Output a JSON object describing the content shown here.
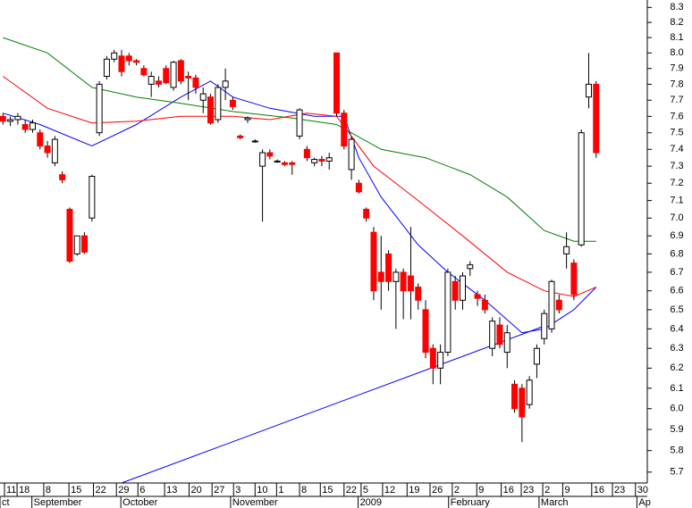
{
  "chart_data": {
    "type": "candlestick",
    "log_scale": true,
    "up_color": "#ffffff",
    "down_color": "#ff0000",
    "wick_color": "#000000",
    "xlim": [
      -0.4,
      86.9
    ],
    "ylim": [
      5.65,
      8.35
    ],
    "yticks": [
      8.3,
      8.2,
      8.1,
      {
        "value": 8,
        "label": "8.0"
      },
      7.9,
      7.8,
      7.7,
      7.6,
      7.5,
      7.4,
      7.3,
      7.2,
      7.1,
      {
        "value": 7,
        "label": "7.0"
      },
      6.9,
      6.8,
      6.7,
      6.6,
      6.5,
      6.4,
      6.3,
      6.2,
      6.1,
      {
        "value": 6,
        "label": "6.0"
      },
      5.9,
      5.8,
      5.7
    ],
    "xticks": [
      {
        "value": 0.2,
        "label": "11"
      },
      {
        "value": 1.9,
        "label": "18"
      },
      {
        "value": 5.5,
        "label": "8"
      },
      {
        "value": 8.9,
        "label": "15"
      },
      {
        "value": 12.2,
        "label": "22"
      },
      {
        "value": 15.3,
        "label": "29"
      },
      {
        "value": 18.2,
        "label": "6"
      },
      {
        "value": 21.8,
        "label": "13"
      },
      {
        "value": 25.1,
        "label": "20"
      },
      {
        "value": 28.2,
        "label": "27"
      },
      {
        "value": 31.1,
        "label": "3"
      },
      {
        "value": 34.0,
        "label": "10"
      },
      {
        "value": 36.9,
        "label": "1"
      },
      {
        "value": 40.0,
        "label": "8"
      },
      {
        "value": 42.8,
        "label": "15"
      },
      {
        "value": 46.0,
        "label": "22"
      },
      {
        "value": 48.3,
        "label": "5"
      },
      {
        "value": 51.2,
        "label": "12"
      },
      {
        "value": 54.5,
        "label": "19"
      },
      {
        "value": 57.6,
        "label": "26"
      },
      {
        "value": 60.6,
        "label": "2"
      },
      {
        "value": 63.9,
        "label": "9"
      },
      {
        "value": 67.2,
        "label": "16"
      },
      {
        "value": 69.9,
        "label": "23"
      },
      {
        "value": 72.8,
        "label": "2"
      },
      {
        "value": 75.5,
        "label": "9"
      },
      {
        "value": 79.4,
        "label": "16"
      },
      {
        "value": 82.2,
        "label": "23"
      },
      {
        "value": 85.3,
        "label": "30"
      }
    ],
    "month_labels": [
      {
        "value": -0.4,
        "label": "ct"
      },
      {
        "value": 3.9,
        "label": "September"
      },
      {
        "value": 15.9,
        "label": "October"
      },
      {
        "value": 30.7,
        "label": "November"
      },
      {
        "value": 47.9,
        "label": "2009"
      },
      {
        "value": 60.1,
        "label": "February"
      },
      {
        "value": 72.3,
        "label": "March"
      },
      {
        "value": 85.5,
        "label": "Ap"
      }
    ],
    "candles": [
      [
        7.6,
        7.62,
        7.55,
        7.57
      ],
      [
        7.57,
        7.6,
        7.54,
        7.58
      ],
      [
        7.58,
        7.62,
        7.55,
        7.6
      ],
      [
        7.55,
        7.58,
        7.5,
        7.52
      ],
      [
        7.52,
        7.58,
        7.5,
        7.56
      ],
      [
        7.5,
        7.52,
        7.4,
        7.42
      ],
      [
        7.42,
        7.45,
        7.35,
        7.38
      ],
      [
        7.32,
        7.48,
        7.3,
        7.46
      ],
      [
        7.25,
        7.27,
        7.2,
        7.22
      ],
      [
        7.05,
        7.06,
        6.75,
        6.76
      ],
      [
        6.8,
        6.9,
        6.79,
        6.9
      ],
      [
        6.9,
        6.92,
        6.8,
        6.81
      ],
      [
        7.0,
        7.25,
        6.98,
        7.24
      ],
      [
        7.5,
        7.82,
        7.48,
        7.8
      ],
      [
        7.85,
        7.98,
        7.83,
        7.96
      ],
      [
        7.96,
        8.02,
        7.94,
        8.0
      ],
      [
        7.98,
        8.02,
        7.85,
        7.88
      ],
      [
        7.98,
        8.0,
        7.92,
        7.95
      ],
      [
        7.95,
        7.96,
        7.92,
        7.94
      ],
      [
        7.9,
        7.92,
        7.85,
        7.86
      ],
      [
        7.8,
        7.88,
        7.72,
        7.85
      ],
      [
        7.82,
        7.85,
        7.78,
        7.8
      ],
      [
        7.9,
        7.92,
        7.8,
        7.81
      ],
      [
        7.78,
        7.95,
        7.76,
        7.94
      ],
      [
        7.95,
        7.96,
        7.8,
        7.82
      ],
      [
        7.85,
        7.88,
        7.7,
        7.84
      ],
      [
        7.84,
        7.86,
        7.74,
        7.78
      ],
      [
        7.7,
        7.78,
        7.62,
        7.74
      ],
      [
        7.72,
        7.74,
        7.55,
        7.56
      ],
      [
        7.58,
        7.8,
        7.56,
        7.78
      ],
      [
        7.78,
        7.9,
        7.7,
        7.82
      ],
      [
        7.7,
        7.72,
        7.64,
        7.66
      ],
      [
        7.48,
        7.49,
        7.46,
        7.47
      ],
      [
        7.58,
        7.6,
        7.56,
        7.59
      ],
      [
        7.45,
        7.46,
        7.44,
        7.45
      ],
      [
        7.3,
        7.4,
        6.98,
        7.38
      ],
      [
        7.38,
        7.4,
        7.34,
        7.36
      ],
      [
        7.33,
        7.34,
        7.32,
        7.33
      ],
      [
        7.32,
        7.33,
        7.3,
        7.31
      ],
      [
        7.32,
        7.33,
        7.25,
        7.31
      ],
      [
        7.48,
        7.65,
        7.46,
        7.64
      ],
      [
        7.4,
        7.42,
        7.33,
        7.35
      ],
      [
        7.32,
        7.35,
        7.3,
        7.34
      ],
      [
        7.34,
        7.36,
        7.3,
        7.33
      ],
      [
        7.33,
        7.38,
        7.28,
        7.35
      ],
      [
        8.0,
        8.0,
        7.6,
        7.62
      ],
      [
        7.62,
        7.64,
        7.4,
        7.42
      ],
      [
        7.28,
        7.48,
        7.22,
        7.46
      ],
      [
        7.2,
        7.22,
        7.14,
        7.15
      ],
      [
        7.05,
        7.06,
        6.98,
        7.0
      ],
      [
        6.92,
        6.95,
        6.55,
        6.6
      ],
      [
        6.7,
        6.9,
        6.5,
        6.65
      ],
      [
        6.8,
        6.82,
        6.6,
        6.65
      ],
      [
        6.65,
        6.72,
        6.4,
        6.7
      ],
      [
        6.7,
        6.72,
        6.45,
        6.6
      ],
      [
        6.68,
        6.95,
        6.45,
        6.6
      ],
      [
        6.62,
        6.64,
        6.5,
        6.55
      ],
      [
        6.5,
        6.55,
        6.25,
        6.28
      ],
      [
        6.3,
        6.32,
        6.12,
        6.2
      ],
      [
        6.2,
        6.32,
        6.12,
        6.28
      ],
      [
        6.28,
        6.72,
        6.26,
        6.7
      ],
      [
        6.65,
        6.68,
        6.5,
        6.55
      ],
      [
        6.55,
        6.7,
        6.5,
        6.68
      ],
      [
        6.72,
        6.76,
        6.68,
        6.74
      ],
      [
        6.58,
        6.6,
        6.52,
        6.56
      ],
      [
        6.55,
        6.58,
        6.48,
        6.5
      ],
      [
        6.3,
        6.46,
        6.26,
        6.44
      ],
      [
        6.42,
        6.46,
        6.3,
        6.32
      ],
      [
        6.28,
        6.42,
        6.2,
        6.38
      ],
      [
        6.12,
        6.14,
        5.98,
        6.0
      ],
      [
        6.1,
        6.12,
        5.84,
        5.96
      ],
      [
        6.02,
        6.16,
        6.0,
        6.14
      ],
      [
        6.22,
        6.32,
        6.15,
        6.3
      ],
      [
        6.35,
        6.5,
        6.32,
        6.48
      ],
      [
        6.4,
        6.66,
        6.38,
        6.65
      ],
      [
        6.55,
        6.58,
        6.48,
        6.5
      ],
      [
        6.8,
        6.92,
        6.72,
        6.84
      ],
      [
        6.75,
        6.77,
        6.55,
        6.58
      ],
      [
        6.85,
        7.52,
        6.84,
        7.5
      ],
      [
        7.72,
        8.0,
        7.65,
        7.8
      ],
      [
        7.8,
        7.82,
        7.35,
        7.38
      ]
    ],
    "series": [
      {
        "color": "#0000ff",
        "x": [
          0,
          5,
          12,
          18,
          24,
          28,
          31,
          36,
          42,
          46,
          48,
          51,
          56,
          60,
          65,
          70,
          73,
          77,
          80
        ],
        "values": [
          7.62,
          7.55,
          7.42,
          7.55,
          7.72,
          7.82,
          7.72,
          7.65,
          7.6,
          7.6,
          7.35,
          7.12,
          6.85,
          6.7,
          6.55,
          6.38,
          6.4,
          6.5,
          6.62
        ]
      },
      {
        "color": "#ff0000",
        "x": [
          0,
          6,
          12,
          18,
          24,
          31,
          36,
          41,
          45,
          50,
          56,
          62,
          68,
          73,
          77,
          80
        ],
        "values": [
          7.85,
          7.65,
          7.56,
          7.57,
          7.6,
          7.6,
          7.58,
          7.62,
          7.6,
          7.3,
          7.1,
          6.9,
          6.7,
          6.6,
          6.57,
          6.62
        ]
      },
      {
        "color": "#008000",
        "x": [
          0,
          6,
          12,
          18,
          24,
          31,
          39,
          45,
          51,
          57,
          63,
          68,
          73,
          77,
          80
        ],
        "values": [
          8.1,
          8.0,
          7.78,
          7.72,
          7.68,
          7.63,
          7.59,
          7.55,
          7.4,
          7.35,
          7.25,
          7.12,
          6.93,
          6.87,
          6.87
        ]
      }
    ],
    "trend_line": {
      "color": "#0000ff",
      "x": [
        16,
        73.4
      ],
      "values": [
        5.65,
        6.42
      ]
    }
  }
}
